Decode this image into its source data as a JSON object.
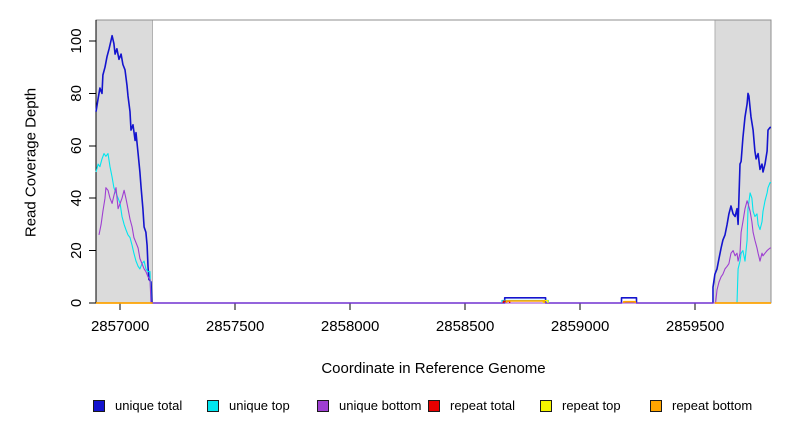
{
  "figure": {
    "title": "",
    "xlabel": "Coordinate in Reference Genome",
    "ylabel": "Read Coverage Depth"
  },
  "legend": {
    "items": [
      {
        "label": "unique total",
        "color": "#1414CE"
      },
      {
        "label": "unique top",
        "color": "#00E5EE"
      },
      {
        "label": "unique bottom",
        "color": "#9E3FD1"
      },
      {
        "label": "repeat total",
        "color": "#E60000"
      },
      {
        "label": "repeat top",
        "color": "#F5F500"
      },
      {
        "label": "repeat bottom",
        "color": "#FFA500"
      }
    ]
  },
  "chart_data": {
    "type": "line",
    "title": "",
    "xlabel": "Coordinate in Reference Genome",
    "ylabel": "Read Coverage Depth",
    "xlim": [
      2856895,
      2859830
    ],
    "ylim": [
      0,
      108
    ],
    "xticks": [
      2857000,
      2857500,
      2858000,
      2858500,
      2859000,
      2859500
    ],
    "yticks": [
      0,
      20,
      40,
      60,
      80,
      100
    ],
    "grid": false,
    "legend_position": "bottom",
    "colors": {
      "repeat_region_fill": "#DBDBDB",
      "repeat_region_border": "#B2B2B2",
      "box": "#8F8F8F",
      "axis": "#000000"
    },
    "repeat_regions": [
      {
        "name": "left-repeat-region",
        "x0": 2856895,
        "x1": 2857141
      },
      {
        "name": "right-repeat-region",
        "x0": 2859586,
        "x1": 2859830
      }
    ],
    "series": [
      {
        "name": "unique total",
        "color": "#1414CE",
        "width": 1.6,
        "segments": [
          [
            [
              2856895,
              73
            ],
            [
              2856904,
              78
            ],
            [
              2856912,
              82
            ],
            [
              2856921,
              80
            ],
            [
              2856925,
              87
            ],
            [
              2856934,
              90
            ],
            [
              2856943,
              94
            ],
            [
              2856952,
              97
            ],
            [
              2856960,
              100
            ],
            [
              2856965,
              102
            ],
            [
              2856973,
              99
            ],
            [
              2856978,
              95
            ],
            [
              2856986,
              97
            ],
            [
              2856995,
              93
            ],
            [
              2857004,
              95
            ],
            [
              2857012,
              91
            ],
            [
              2857021,
              89
            ],
            [
              2857030,
              83
            ],
            [
              2857034,
              79
            ],
            [
              2857043,
              73
            ],
            [
              2857047,
              66
            ],
            [
              2857056,
              68
            ],
            [
              2857065,
              62
            ],
            [
              2857069,
              65
            ],
            [
              2857078,
              57
            ],
            [
              2857086,
              50
            ],
            [
              2857091,
              44
            ],
            [
              2857099,
              36
            ],
            [
              2857104,
              29
            ],
            [
              2857112,
              27
            ],
            [
              2857117,
              22
            ],
            [
              2857121,
              14
            ],
            [
              2857125,
              9
            ],
            [
              2857134,
              8
            ],
            [
              2857138,
              0
            ],
            [
              2858672,
              0
            ],
            [
              2858672,
              2
            ],
            [
              2858850,
              2
            ],
            [
              2858850,
              0
            ],
            [
              2859180,
              0
            ],
            [
              2859180,
              2
            ],
            [
              2859245,
              2
            ],
            [
              2859245,
              0
            ],
            [
              2859578,
              0
            ],
            [
              2859578,
              6
            ],
            [
              2859586,
              11
            ],
            [
              2859595,
              13
            ],
            [
              2859604,
              17
            ],
            [
              2859613,
              21
            ],
            [
              2859621,
              24
            ],
            [
              2859630,
              26
            ],
            [
              2859639,
              30
            ],
            [
              2859647,
              34
            ],
            [
              2859656,
              37
            ],
            [
              2859665,
              34
            ],
            [
              2859674,
              33
            ],
            [
              2859682,
              36
            ],
            [
              2859687,
              30
            ],
            [
              2859695,
              53
            ],
            [
              2859700,
              54
            ],
            [
              2859708,
              63
            ],
            [
              2859717,
              71
            ],
            [
              2859726,
              76
            ],
            [
              2859730,
              80
            ],
            [
              2859734,
              79
            ],
            [
              2859743,
              71
            ],
            [
              2859752,
              66
            ],
            [
              2859760,
              58
            ],
            [
              2859765,
              55
            ],
            [
              2859774,
              57
            ],
            [
              2859782,
              51
            ],
            [
              2859791,
              53
            ],
            [
              2859795,
              50
            ],
            [
              2859804,
              53
            ],
            [
              2859813,
              58
            ],
            [
              2859817,
              66
            ],
            [
              2859826,
              67
            ],
            [
              2859830,
              67
            ]
          ]
        ]
      },
      {
        "name": "unique top",
        "color": "#00E5EE",
        "width": 1.1,
        "segments": [
          [
            [
              2856895,
              50
            ],
            [
              2856904,
              53
            ],
            [
              2856912,
              52
            ],
            [
              2856921,
              55
            ],
            [
              2856930,
              57
            ],
            [
              2856938,
              56
            ],
            [
              2856947,
              57
            ],
            [
              2856956,
              52
            ],
            [
              2856965,
              48
            ],
            [
              2856973,
              44
            ],
            [
              2856982,
              42
            ],
            [
              2856991,
              40
            ],
            [
              2857000,
              38
            ],
            [
              2857008,
              33
            ],
            [
              2857017,
              30
            ],
            [
              2857025,
              28
            ],
            [
              2857034,
              26
            ],
            [
              2857043,
              25
            ],
            [
              2857052,
              22
            ],
            [
              2857060,
              19
            ],
            [
              2857069,
              16
            ],
            [
              2857078,
              14
            ],
            [
              2857086,
              13
            ],
            [
              2857095,
              15
            ],
            [
              2857104,
              16
            ],
            [
              2857112,
              13
            ],
            [
              2857121,
              12
            ],
            [
              2857130,
              12
            ],
            [
              2857134,
              0
            ],
            [
              2858660,
              0
            ],
            [
              2858660,
              1
            ],
            [
              2858862,
              1
            ],
            [
              2858862,
              0
            ],
            [
              2859682,
              0
            ],
            [
              2859687,
              13
            ],
            [
              2859695,
              16
            ],
            [
              2859700,
              19
            ],
            [
              2859708,
              20
            ],
            [
              2859717,
              16
            ],
            [
              2859726,
              24
            ],
            [
              2859730,
              36
            ],
            [
              2859739,
              42
            ],
            [
              2859747,
              40
            ],
            [
              2859752,
              35
            ],
            [
              2859760,
              33
            ],
            [
              2859769,
              34
            ],
            [
              2859774,
              30
            ],
            [
              2859782,
              28
            ],
            [
              2859791,
              31
            ],
            [
              2859795,
              35
            ],
            [
              2859804,
              39
            ],
            [
              2859813,
              42
            ],
            [
              2859817,
              44
            ],
            [
              2859826,
              46
            ],
            [
              2859830,
              46
            ]
          ]
        ]
      },
      {
        "name": "unique bottom",
        "color": "#9E3FD1",
        "width": 1.1,
        "segments": [
          [
            [
              2856908,
              26
            ],
            [
              2856917,
              30
            ],
            [
              2856925,
              35
            ],
            [
              2856934,
              40
            ],
            [
              2856938,
              44
            ],
            [
              2856947,
              43
            ],
            [
              2856956,
              40
            ],
            [
              2856965,
              38
            ],
            [
              2856973,
              41
            ],
            [
              2856982,
              44
            ],
            [
              2856991,
              36
            ],
            [
              2857000,
              38
            ],
            [
              2857008,
              40
            ],
            [
              2857017,
              43
            ],
            [
              2857025,
              40
            ],
            [
              2857034,
              36
            ],
            [
              2857043,
              32
            ],
            [
              2857052,
              29
            ],
            [
              2857060,
              25
            ],
            [
              2857069,
              23
            ],
            [
              2857078,
              21
            ],
            [
              2857086,
              17
            ],
            [
              2857095,
              15
            ],
            [
              2857104,
              13
            ],
            [
              2857112,
              12
            ],
            [
              2857121,
              10
            ],
            [
              2857130,
              9
            ],
            [
              2857134,
              0
            ],
            [
              2859589,
              0
            ],
            [
              2859595,
              5
            ],
            [
              2859604,
              8
            ],
            [
              2859613,
              10
            ],
            [
              2859621,
              11
            ],
            [
              2859630,
              13
            ],
            [
              2859639,
              14
            ],
            [
              2859647,
              15
            ],
            [
              2859656,
              19
            ],
            [
              2859665,
              20
            ],
            [
              2859674,
              18
            ],
            [
              2859682,
              19
            ],
            [
              2859687,
              16
            ],
            [
              2859695,
              19
            ],
            [
              2859700,
              27
            ],
            [
              2859708,
              31
            ],
            [
              2859717,
              36
            ],
            [
              2859726,
              39
            ],
            [
              2859730,
              38
            ],
            [
              2859739,
              35
            ],
            [
              2859747,
              31
            ],
            [
              2859752,
              27
            ],
            [
              2859760,
              24
            ],
            [
              2859769,
              21
            ],
            [
              2859774,
              19
            ],
            [
              2859782,
              16
            ],
            [
              2859791,
              19
            ],
            [
              2859795,
              18
            ],
            [
              2859804,
              19
            ],
            [
              2859813,
              20
            ],
            [
              2859826,
              21
            ],
            [
              2859830,
              21
            ]
          ]
        ]
      },
      {
        "name": "repeat total",
        "color": "#E60000",
        "width": 1.3,
        "segments": [
          [
            [
              2856895,
              0
            ],
            [
              2857141,
              0
            ]
          ],
          [
            [
              2858666,
              0
            ],
            [
              2858666,
              0.7
            ],
            [
              2858694,
              0.7
            ],
            [
              2858694,
              0
            ]
          ],
          [
            [
              2859586,
              0
            ],
            [
              2859830,
              0
            ]
          ]
        ]
      },
      {
        "name": "repeat top",
        "color": "#F5F500",
        "width": 1.3,
        "segments": [
          [
            [
              2856895,
              0
            ],
            [
              2857141,
              0
            ]
          ],
          [
            [
              2858840,
              0
            ],
            [
              2858840,
              0.9
            ],
            [
              2858860,
              0.9
            ],
            [
              2858860,
              0
            ]
          ],
          [
            [
              2859586,
              0
            ],
            [
              2859830,
              0
            ]
          ]
        ]
      },
      {
        "name": "repeat bottom",
        "color": "#FFA500",
        "width": 1.6,
        "segments": [
          [
            [
              2856895,
              0
            ],
            [
              2857141,
              0
            ]
          ],
          [
            [
              2858680,
              0
            ],
            [
              2858680,
              0.8
            ],
            [
              2858845,
              0.8
            ],
            [
              2858845,
              0
            ]
          ],
          [
            [
              2859190,
              0
            ],
            [
              2859190,
              0.5
            ],
            [
              2859240,
              0.5
            ],
            [
              2859240,
              0
            ]
          ],
          [
            [
              2859586,
              0
            ],
            [
              2859830,
              0
            ]
          ]
        ]
      }
    ]
  }
}
